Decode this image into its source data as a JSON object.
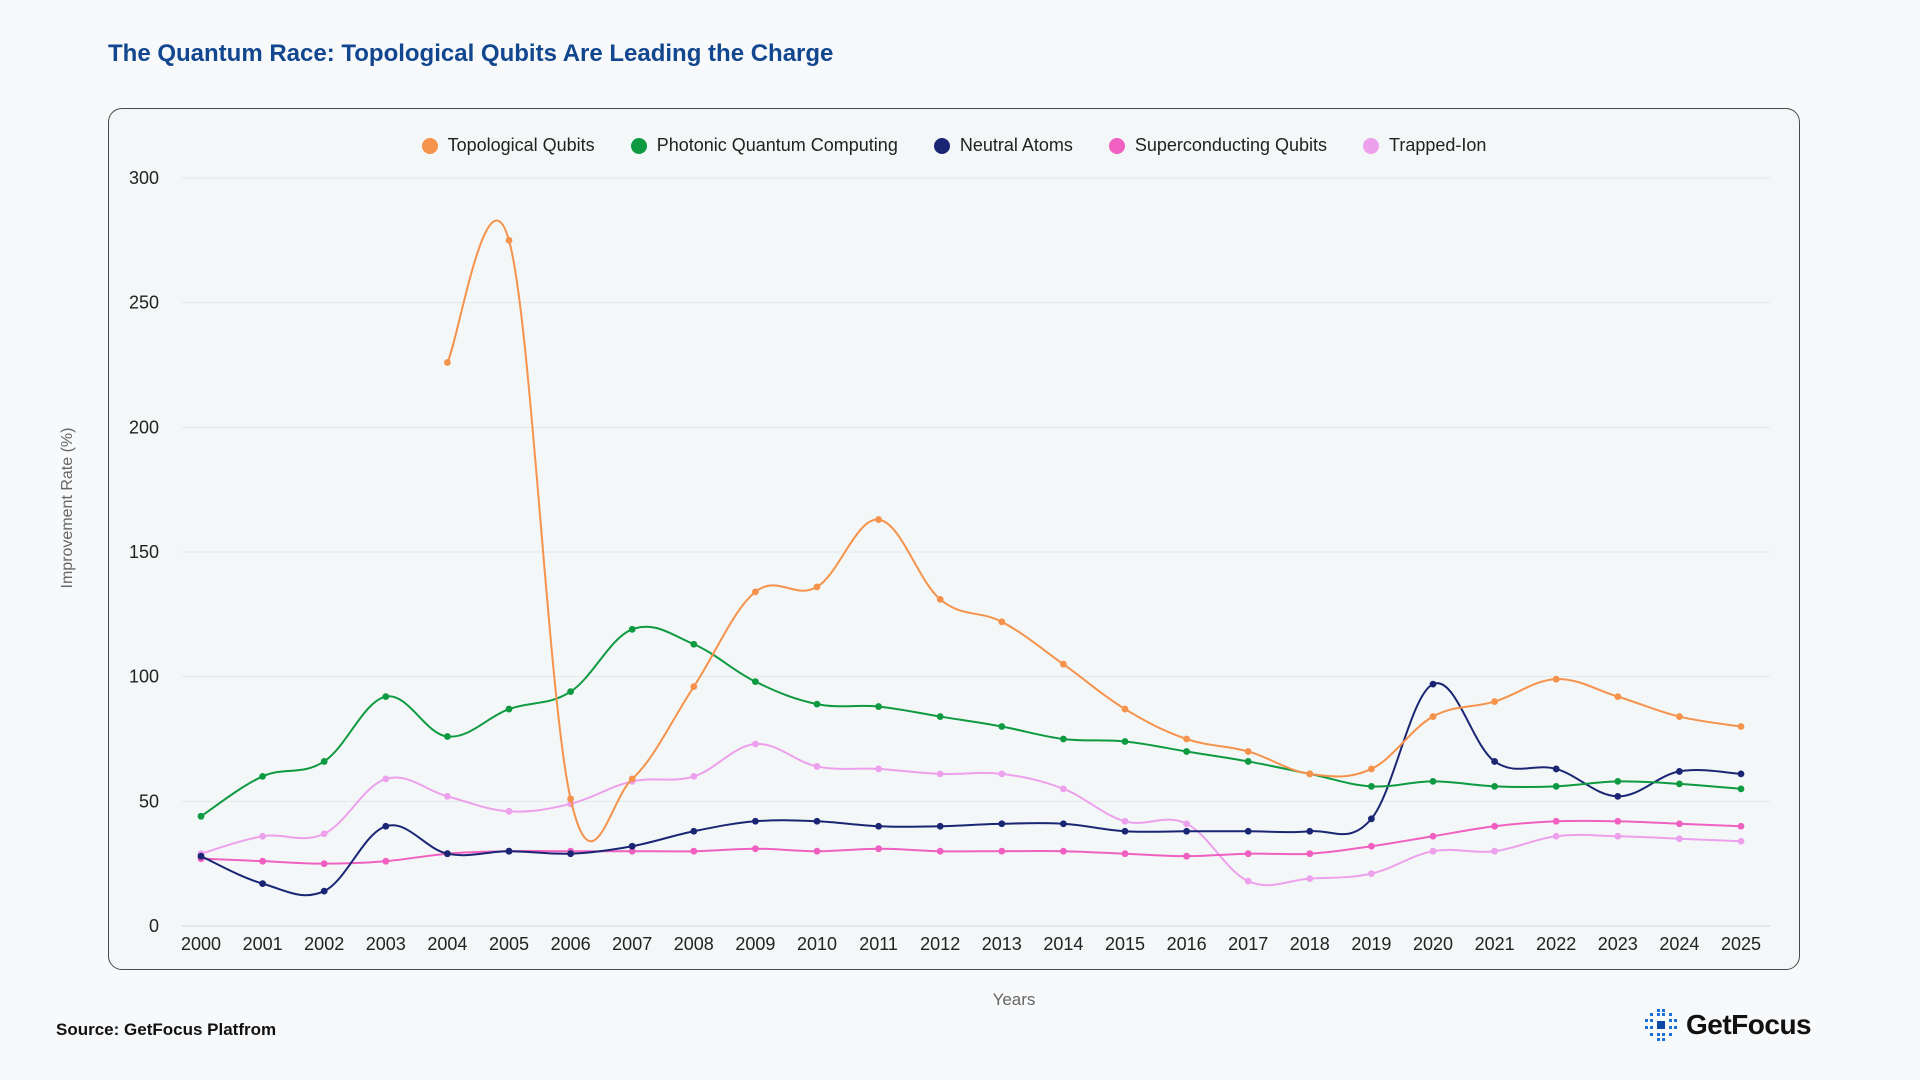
{
  "header": {
    "title": "The Quantum Race: Topological Qubits Are Leading the Charge"
  },
  "footer": {
    "source": "Source: GetFocus Platfrom",
    "brand": "GetFocus"
  },
  "chart_data": {
    "type": "line",
    "title": "The Quantum Race: Topological Qubits Are Leading the Charge",
    "xlabel": "Years",
    "ylabel": "Improvement Rate (%)",
    "ylim": [
      0,
      300
    ],
    "yticks": [
      0,
      50,
      100,
      150,
      200,
      250,
      300
    ],
    "grid": true,
    "legend_position": "top-center",
    "x": [
      "2000",
      "2001",
      "2002",
      "2003",
      "2004",
      "2005",
      "2006",
      "2007",
      "2008",
      "2009",
      "2010",
      "2011",
      "2012",
      "2013",
      "2014",
      "2015",
      "2016",
      "2017",
      "2018",
      "2019",
      "2020",
      "2021",
      "2022",
      "2023",
      "2024",
      "2025"
    ],
    "series": [
      {
        "name": "Topological Qubits",
        "color": "#f5924b",
        "values": [
          null,
          null,
          null,
          null,
          226,
          275,
          51,
          59,
          96,
          134,
          136,
          163,
          131,
          122,
          105,
          87,
          75,
          70,
          61,
          63,
          84,
          90,
          99,
          92,
          84,
          80
        ]
      },
      {
        "name": "Photonic Quantum Computing",
        "color": "#0e9a40",
        "values": [
          44,
          60,
          66,
          92,
          76,
          87,
          94,
          119,
          113,
          98,
          89,
          88,
          84,
          80,
          75,
          74,
          70,
          66,
          61,
          56,
          58,
          56,
          56,
          58,
          57,
          55
        ]
      },
      {
        "name": "Neutral Atoms",
        "color": "#1a2673",
        "values": [
          28,
          17,
          14,
          40,
          29,
          30,
          29,
          32,
          38,
          42,
          42,
          40,
          40,
          41,
          41,
          38,
          38,
          38,
          38,
          43,
          97,
          66,
          63,
          52,
          62,
          61
        ]
      },
      {
        "name": "Superconducting Qubits",
        "color": "#f060c0",
        "values": [
          27,
          26,
          25,
          26,
          29,
          30,
          30,
          30,
          30,
          31,
          30,
          31,
          30,
          30,
          30,
          29,
          28,
          29,
          29,
          32,
          36,
          40,
          42,
          42,
          41,
          40
        ]
      },
      {
        "name": "Trapped-Ion",
        "color": "#eda0ec",
        "values": [
          29,
          36,
          37,
          59,
          52,
          46,
          49,
          58,
          60,
          73,
          64,
          63,
          61,
          61,
          55,
          42,
          41,
          18,
          19,
          21,
          30,
          30,
          36,
          36,
          35,
          34
        ]
      }
    ]
  }
}
